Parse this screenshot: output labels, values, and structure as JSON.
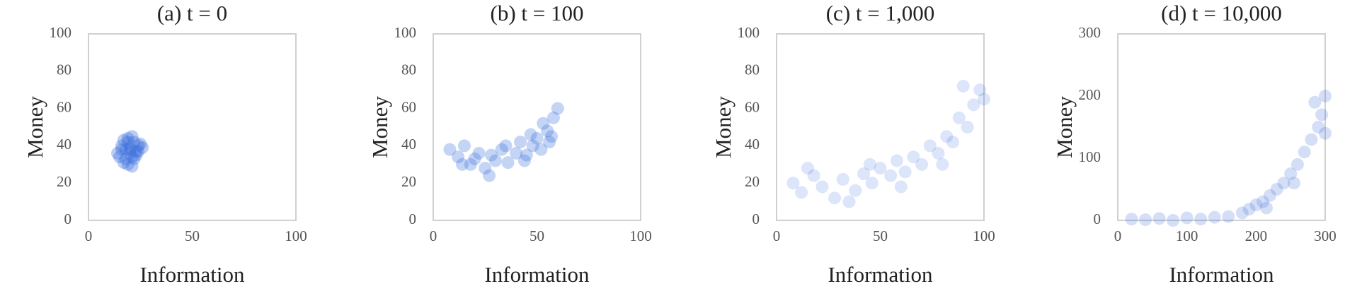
{
  "chart_data": [
    {
      "type": "scatter",
      "title": "(a) t = 0",
      "xlabel": "Information",
      "ylabel": "Money",
      "color": "#3b6fdc",
      "opacity": 0.35,
      "xlim": [
        0,
        100
      ],
      "ylim": [
        0,
        100
      ],
      "xticks": [
        0,
        50,
        100
      ],
      "yticks": [
        0,
        20,
        40,
        60,
        80,
        100
      ],
      "grid": false,
      "x": [
        14,
        16,
        18,
        20,
        22,
        24,
        26,
        15,
        17,
        19,
        21,
        23,
        25,
        18,
        20,
        22,
        16,
        24,
        19,
        21,
        20,
        17,
        23,
        19,
        21
      ],
      "values": [
        36,
        40,
        33,
        38,
        42,
        37,
        39,
        34,
        43,
        30,
        45,
        35,
        41,
        38,
        36,
        33,
        38,
        40,
        44,
        29,
        39,
        31,
        37,
        42,
        34
      ]
    },
    {
      "type": "scatter",
      "title": "(b) t = 100",
      "xlabel": "Information",
      "ylabel": "Money",
      "color": "#3b6fdc",
      "opacity": 0.3,
      "xlim": [
        0,
        100
      ],
      "ylim": [
        0,
        100
      ],
      "xticks": [
        0,
        50,
        100
      ],
      "yticks": [
        0,
        20,
        40,
        60,
        80,
        100
      ],
      "grid": false,
      "x": [
        8,
        12,
        15,
        18,
        22,
        25,
        28,
        30,
        33,
        36,
        40,
        42,
        45,
        48,
        50,
        52,
        55,
        56,
        58,
        60,
        20,
        35,
        47,
        53,
        27,
        14,
        44,
        57
      ],
      "values": [
        38,
        34,
        40,
        30,
        36,
        28,
        35,
        32,
        38,
        31,
        36,
        42,
        35,
        40,
        44,
        38,
        48,
        42,
        55,
        60,
        33,
        40,
        46,
        52,
        24,
        30,
        32,
        45
      ]
    },
    {
      "type": "scatter",
      "title": "(c) t = 1,000",
      "xlabel": "Information",
      "ylabel": "Money",
      "color": "#3b6fdc",
      "opacity": 0.18,
      "xlim": [
        0,
        100
      ],
      "ylim": [
        0,
        100
      ],
      "xticks": [
        0,
        50,
        100
      ],
      "yticks": [
        0,
        20,
        40,
        60,
        80,
        100
      ],
      "grid": false,
      "x": [
        8,
        12,
        18,
        22,
        28,
        32,
        38,
        42,
        46,
        50,
        55,
        58,
        62,
        66,
        70,
        74,
        78,
        82,
        85,
        88,
        92,
        95,
        98,
        100,
        15,
        35,
        60,
        80,
        90,
        45
      ],
      "values": [
        20,
        15,
        24,
        18,
        12,
        22,
        16,
        25,
        20,
        28,
        24,
        32,
        26,
        34,
        30,
        40,
        36,
        45,
        42,
        55,
        50,
        62,
        70,
        65,
        28,
        10,
        18,
        30,
        72,
        30
      ]
    },
    {
      "type": "scatter",
      "title": "(d) t = 10,000",
      "xlabel": "Information",
      "ylabel": "Money",
      "color": "#3b6fdc",
      "opacity": 0.22,
      "xlim": [
        0,
        300
      ],
      "ylim": [
        0,
        300
      ],
      "xticks": [
        0,
        100,
        200,
        300
      ],
      "yticks": [
        0,
        100,
        200,
        300
      ],
      "grid": false,
      "x": [
        20,
        40,
        60,
        80,
        100,
        120,
        140,
        160,
        180,
        190,
        200,
        210,
        220,
        230,
        240,
        250,
        260,
        270,
        280,
        290,
        295,
        300,
        300,
        285,
        255,
        215
      ],
      "values": [
        2,
        1,
        3,
        0,
        4,
        2,
        5,
        6,
        12,
        18,
        25,
        30,
        40,
        50,
        60,
        75,
        90,
        110,
        130,
        150,
        170,
        200,
        140,
        190,
        60,
        20
      ]
    }
  ]
}
